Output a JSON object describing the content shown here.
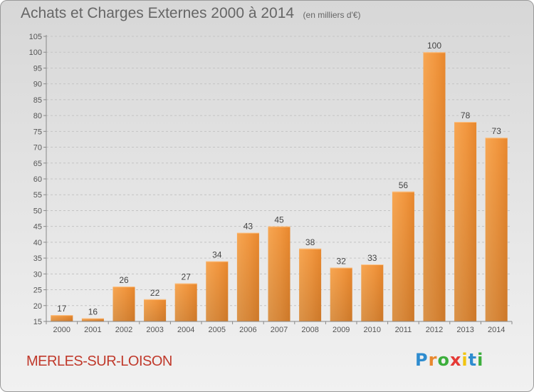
{
  "chart_data": {
    "type": "bar",
    "title": "Achats et Charges Externes 2000 à 2014",
    "unit": "(en milliers d'€)",
    "categories": [
      "2000",
      "2001",
      "2002",
      "2003",
      "2004",
      "2005",
      "2006",
      "2007",
      "2008",
      "2009",
      "2010",
      "2011",
      "2012",
      "2013",
      "2014"
    ],
    "values": [
      17,
      16,
      26,
      22,
      27,
      34,
      43,
      45,
      38,
      32,
      33,
      56,
      100,
      78,
      73
    ],
    "ylim": [
      15,
      105
    ],
    "yticks": [
      15,
      20,
      25,
      30,
      35,
      40,
      45,
      50,
      55,
      60,
      65,
      70,
      75,
      80,
      85,
      90,
      95,
      100,
      105
    ],
    "grid": true,
    "bar_color": "#e8882e",
    "bar_color_light": "#f7a652"
  },
  "footer": {
    "commune": "MERLES-SUR-LOISON",
    "brand_letters": [
      "P",
      "r",
      "o",
      "x",
      "i",
      "t",
      "i"
    ],
    "brand_colors": [
      "#2e8ccf",
      "#e8882e",
      "#3cae3c",
      "#e53935",
      "#f1c40f",
      "#2e8ccf",
      "#3cae3c"
    ]
  }
}
